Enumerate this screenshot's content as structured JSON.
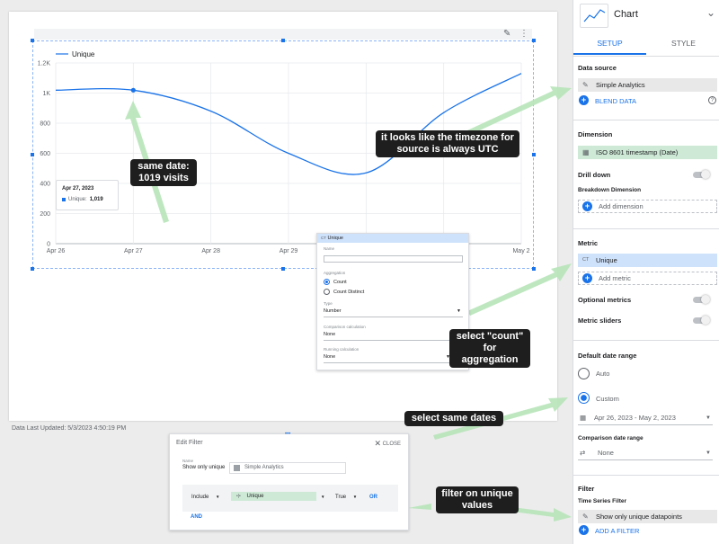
{
  "report": {
    "last_updated": "Data Last Updated: 5/3/2023 4:50:19 PM"
  },
  "chart_data": {
    "type": "line",
    "title": "",
    "legend": "Unique",
    "legend_position": "top-left",
    "grid": true,
    "x": [
      "Apr 26",
      "Apr 27",
      "Apr 28",
      "Apr 29",
      "Apr 30",
      "May 1",
      "May 2"
    ],
    "x_tick_labels": [
      "Apr 26",
      "Apr 27",
      "Apr 28",
      "Apr 29",
      "May 2"
    ],
    "series": [
      {
        "name": "Unique",
        "color": "#1a73e8",
        "values": [
          1019,
          1019,
          880,
          600,
          470,
          870,
          1130
        ]
      }
    ],
    "y_ticks": [
      "0",
      "200",
      "400",
      "600",
      "800",
      "1K",
      "1.2K"
    ],
    "ylim": [
      0,
      1200
    ],
    "highlight_index": 1
  },
  "tooltip": {
    "date": "Apr 27, 2023",
    "series": "Unique:",
    "value": "1,019"
  },
  "callouts": {
    "same_date": [
      "same date:",
      "1019 visits"
    ],
    "timezone": [
      "it looks like the timezone for",
      "source is always UTC"
    ],
    "count": [
      "select \"count\"",
      "for aggregation"
    ],
    "same_dates": "select same dates",
    "filter": [
      "filter on unique",
      "values"
    ]
  },
  "metric_popup": {
    "header_icon": "CT",
    "header": "Unique",
    "name_label": "Name",
    "aggregation_label": "Aggregation",
    "option_count": "Count",
    "option_count_distinct": "Count Distinct",
    "type_label": "Type",
    "type_value": "Number",
    "comparison_label": "Comparison calculation",
    "comparison_value": "None",
    "running_label": "Running calculation",
    "running_value": "None"
  },
  "filter_panel": {
    "title": "Edit Filter",
    "close": "CLOSE",
    "name_label": "Name",
    "name_value": "Show only unique",
    "source": "Simple Analytics",
    "include": "Include",
    "field": "Unique",
    "value": "True",
    "or": "OR",
    "and": "AND"
  },
  "panel": {
    "title": "Chart",
    "tab_setup": "SETUP",
    "tab_style": "STYLE",
    "data_source_label": "Data source",
    "data_source": "Simple Analytics",
    "blend_data": "BLEND DATA",
    "dimension_label": "Dimension",
    "dimension": "ISO 8601 timestamp (Date)",
    "drill_down": "Drill down",
    "breakdown_label": "Breakdown Dimension",
    "add_dimension": "Add dimension",
    "metric_label": "Metric",
    "metric_icon": "CT",
    "metric": "Unique",
    "add_metric": "Add metric",
    "optional_metrics": "Optional metrics",
    "metric_sliders": "Metric sliders",
    "date_range_label": "Default date range",
    "auto": "Auto",
    "custom": "Custom",
    "date_range": "Apr 26, 2023 - May 2, 2023",
    "comparison_label": "Comparison date range",
    "comparison_value": "None",
    "filter_label": "Filter",
    "ts_filter_label": "Time Series Filter",
    "filter_value": "Show only unique datapoints",
    "add_filter": "ADD A FILTER"
  }
}
